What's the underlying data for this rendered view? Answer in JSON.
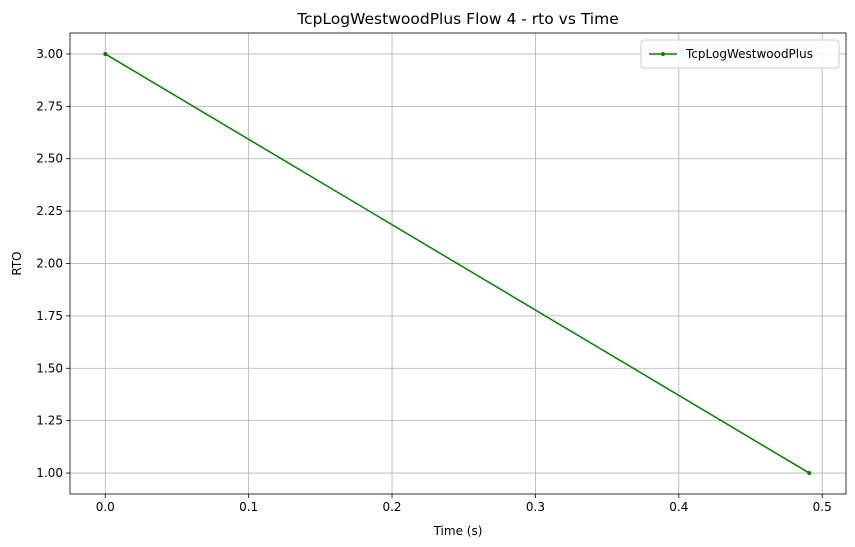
{
  "chart_data": {
    "type": "line",
    "title": "TcpLogWestwoodPlus Flow 4 - rto vs Time",
    "xlabel": "Time (s)",
    "ylabel": "RTO",
    "xlim": [
      -0.0246,
      0.5166
    ],
    "ylim": [
      0.9,
      3.1
    ],
    "xticks": [
      0.0,
      0.1,
      0.2,
      0.3,
      0.4,
      0.5
    ],
    "xtick_labels": [
      "0.0",
      "0.1",
      "0.2",
      "0.3",
      "0.4",
      "0.5"
    ],
    "yticks": [
      1.0,
      1.25,
      1.5,
      1.75,
      2.0,
      2.25,
      2.5,
      2.75,
      3.0
    ],
    "ytick_labels": [
      "1.00",
      "1.25",
      "1.50",
      "1.75",
      "2.00",
      "2.25",
      "2.50",
      "2.75",
      "3.00"
    ],
    "grid": true,
    "legend_position": "top-right",
    "series": [
      {
        "name": "TcpLogWestwoodPlus",
        "color": "#008000",
        "marker": "point",
        "x": [
          0.0,
          0.491
        ],
        "y": [
          3.0,
          1.0
        ]
      }
    ]
  }
}
